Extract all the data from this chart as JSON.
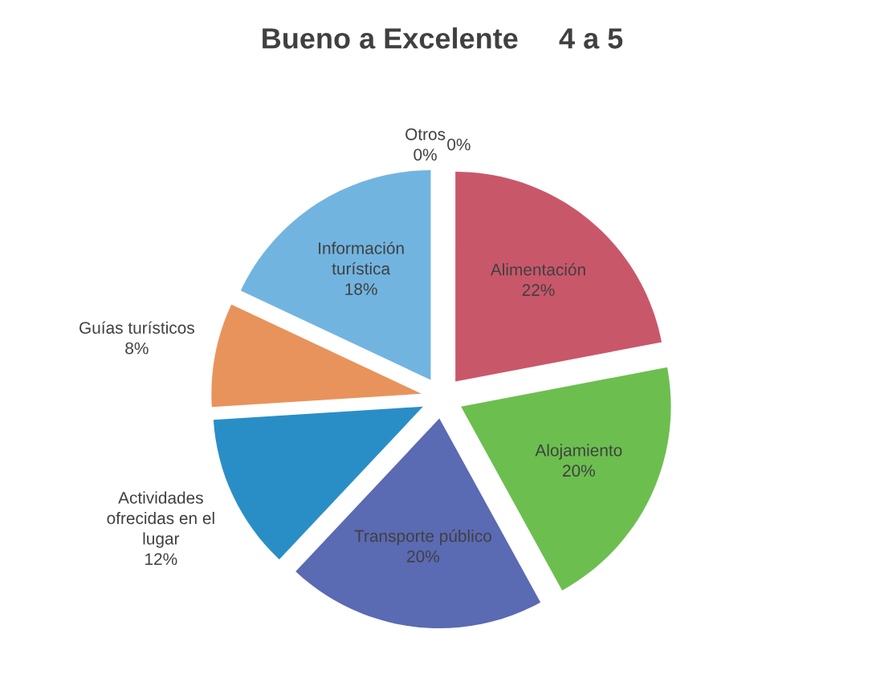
{
  "chart_data": {
    "type": "pie",
    "title": "Bueno a Excelente     4 a 5",
    "categories": [
      "Alimentación",
      "Alojamiento",
      "Transporte público",
      "Actividades\nofrecidas en el\nlugar",
      "Guías turísticos",
      "Información\nturística",
      "Otros",
      null
    ],
    "values": [
      22,
      20,
      20,
      12,
      8,
      18,
      0,
      0
    ],
    "colors": [
      "#c9576a",
      "#6cbf4f",
      "#5a6ab3",
      "#2a8ec6",
      "#e8935c",
      "#72b4e0",
      "#9a9a9a",
      "#b0b0b0"
    ],
    "value_labels": [
      "22%",
      "20%",
      "20%",
      "12%",
      "8%",
      "18%",
      "0%",
      "0%"
    ],
    "legend": false
  }
}
